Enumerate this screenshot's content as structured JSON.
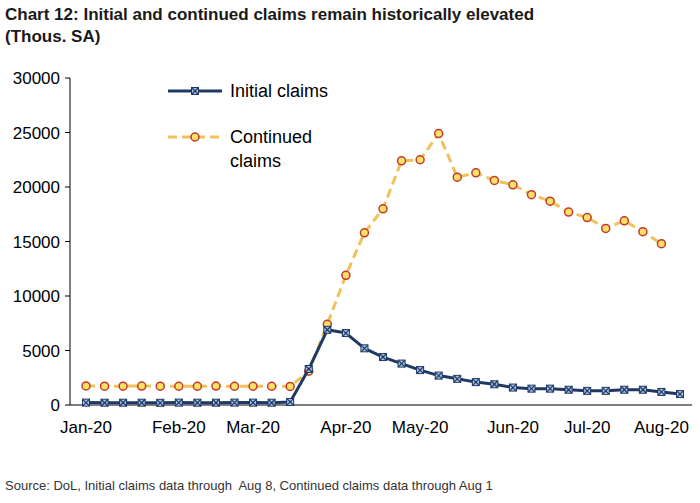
{
  "chart_data": {
    "type": "line",
    "title": "Chart 12: Initial and continued claims remain historically elevated",
    "subtitle": "(Thous. SA)",
    "annotations": [
      "Source: DoL, Initial claims data through  Aug 8, Continued claims data through Aug 1"
    ],
    "categories": [
      "Jan-20",
      null,
      null,
      null,
      null,
      "Feb-20",
      null,
      null,
      null,
      "Mar-20",
      null,
      null,
      null,
      null,
      "Apr-20",
      null,
      null,
      null,
      "May-20",
      null,
      null,
      null,
      null,
      "Jun-20",
      null,
      null,
      null,
      "Jul-20",
      null,
      null,
      null,
      "Aug-20",
      null
    ],
    "series": [
      {
        "name": "Initial claims",
        "color": "#1f3864",
        "marker": "x",
        "line_style": "solid",
        "values": [
          220,
          210,
          210,
          210,
          200,
          220,
          210,
          210,
          220,
          220,
          210,
          280,
          3300,
          6900,
          6600,
          5200,
          4400,
          3800,
          3200,
          2700,
          2400,
          2100,
          1900,
          1600,
          1500,
          1500,
          1400,
          1300,
          1300,
          1400,
          1400,
          1200,
          1000
        ]
      },
      {
        "name": "Continued claims",
        "color": "#f0c15a",
        "marker": "circle",
        "line_style": "dashed",
        "values": [
          1750,
          1730,
          1730,
          1740,
          1730,
          1720,
          1720,
          1740,
          1720,
          1720,
          1720,
          1700,
          3100,
          7400,
          11900,
          15800,
          18000,
          22400,
          22500,
          24900,
          20900,
          21300,
          20600,
          20200,
          19300,
          18700,
          17700,
          17200,
          16200,
          16900,
          15900,
          14800,
          null
        ]
      }
    ],
    "ylim": [
      0,
      30000
    ],
    "yticks": [
      0,
      5000,
      10000,
      15000,
      20000,
      25000,
      30000
    ],
    "grid": false,
    "legend": "top-left"
  }
}
